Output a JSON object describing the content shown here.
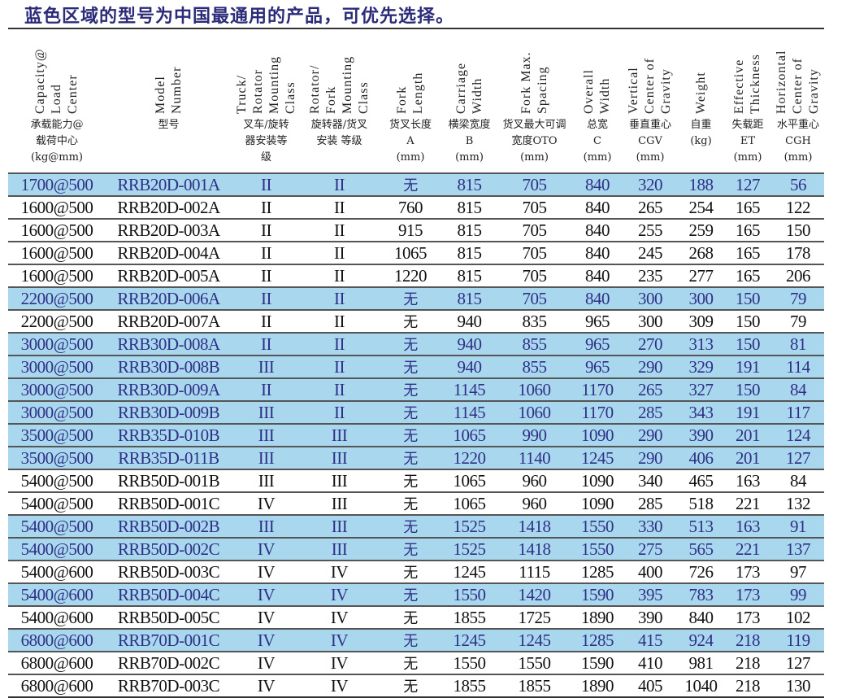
{
  "title": "蓝色区域的型号为中国最通用的产品，可优先选择。",
  "highlight_color": "#a9d8ee",
  "columns": [
    {
      "en": "Capacity@\nLoad\nCenter",
      "zh": "承载能力@\n载荷中心\n(kg@mm)"
    },
    {
      "en": "Model\nNumber",
      "zh": "型号"
    },
    {
      "en": "Truck/\nRotator\nMounting\nClass",
      "zh": "叉车/旋转\n器安装等\n级"
    },
    {
      "en": "Rotator/\nFork\nMounting\nClass",
      "zh": "旋转器/货叉\n安装 等级"
    },
    {
      "en": "Fork\nLength",
      "zh": "货叉长度\nA\n(mm)"
    },
    {
      "en": "Carriage\nWidth",
      "zh": "横梁宽度\nB\n(mm)"
    },
    {
      "en": "Fork Max.\nSpacing",
      "zh": "货叉最大可调\n宽度OTO\n(mm)"
    },
    {
      "en": "Overall\nWidth",
      "zh": "总宽\nC\n(mm)"
    },
    {
      "en": "Vertical\nCenter of\nGravity",
      "zh": "垂直重心\nCGV\n(mm)"
    },
    {
      "en": "Weight",
      "zh": "自重\n(kg)"
    },
    {
      "en": "Effective\nThickness",
      "zh": "失载距\nET\n(mm)"
    },
    {
      "en": "Horizontal\nCenter of\nGravity",
      "zh": "水平重心\nCGH\n(mm)"
    }
  ],
  "rows": [
    {
      "blue": true,
      "cells": [
        "1700@500",
        "RRB20D-001A",
        "II",
        "II",
        "无",
        "815",
        "705",
        "840",
        "320",
        "188",
        "127",
        "56"
      ]
    },
    {
      "blue": false,
      "cells": [
        "1600@500",
        "RRB20D-002A",
        "II",
        "II",
        "760",
        "815",
        "705",
        "840",
        "265",
        "254",
        "165",
        "122"
      ]
    },
    {
      "blue": false,
      "cells": [
        "1600@500",
        "RRB20D-003A",
        "II",
        "II",
        "915",
        "815",
        "705",
        "840",
        "255",
        "259",
        "165",
        "150"
      ]
    },
    {
      "blue": false,
      "cells": [
        "1600@500",
        "RRB20D-004A",
        "II",
        "II",
        "1065",
        "815",
        "705",
        "840",
        "245",
        "268",
        "165",
        "178"
      ]
    },
    {
      "blue": false,
      "cells": [
        "1600@500",
        "RRB20D-005A",
        "II",
        "II",
        "1220",
        "815",
        "705",
        "840",
        "235",
        "277",
        "165",
        "206"
      ]
    },
    {
      "blue": true,
      "cells": [
        "2200@500",
        "RRB20D-006A",
        "II",
        "II",
        "无",
        "815",
        "705",
        "840",
        "300",
        "300",
        "150",
        "79"
      ]
    },
    {
      "blue": false,
      "cells": [
        "2200@500",
        "RRB20D-007A",
        "II",
        "II",
        "无",
        "940",
        "835",
        "965",
        "300",
        "309",
        "150",
        "79"
      ]
    },
    {
      "blue": true,
      "cells": [
        "3000@500",
        "RRB30D-008A",
        "II",
        "II",
        "无",
        "940",
        "855",
        "965",
        "270",
        "313",
        "150",
        "81"
      ]
    },
    {
      "blue": true,
      "cells": [
        "3000@500",
        "RRB30D-008B",
        "III",
        "II",
        "无",
        "940",
        "855",
        "965",
        "290",
        "329",
        "191",
        "114"
      ]
    },
    {
      "blue": true,
      "cells": [
        "3000@500",
        "RRB30D-009A",
        "II",
        "II",
        "无",
        "1145",
        "1060",
        "1170",
        "265",
        "327",
        "150",
        "84"
      ]
    },
    {
      "blue": true,
      "cells": [
        "3000@500",
        "RRB30D-009B",
        "III",
        "II",
        "无",
        "1145",
        "1060",
        "1170",
        "285",
        "343",
        "191",
        "117"
      ]
    },
    {
      "blue": true,
      "cells": [
        "3500@500",
        "RRB35D-010B",
        "III",
        "III",
        "无",
        "1065",
        "990",
        "1090",
        "290",
        "390",
        "201",
        "124"
      ]
    },
    {
      "blue": true,
      "cells": [
        "3500@500",
        "RRB35D-011B",
        "III",
        "III",
        "无",
        "1220",
        "1140",
        "1245",
        "290",
        "406",
        "201",
        "127"
      ]
    },
    {
      "blue": false,
      "cells": [
        "5400@500",
        "RRB50D-001B",
        "III",
        "III",
        "无",
        "1065",
        "960",
        "1090",
        "340",
        "465",
        "163",
        "84"
      ]
    },
    {
      "blue": false,
      "cells": [
        "5400@500",
        "RRB50D-001C",
        "IV",
        "III",
        "无",
        "1065",
        "960",
        "1090",
        "285",
        "518",
        "221",
        "132"
      ]
    },
    {
      "blue": true,
      "cells": [
        "5400@500",
        "RRB50D-002B",
        "III",
        "III",
        "无",
        "1525",
        "1418",
        "1550",
        "330",
        "513",
        "163",
        "91"
      ]
    },
    {
      "blue": true,
      "cells": [
        "5400@500",
        "RRB50D-002C",
        "IV",
        "III",
        "无",
        "1525",
        "1418",
        "1550",
        "275",
        "565",
        "221",
        "137"
      ]
    },
    {
      "blue": false,
      "cells": [
        "5400@600",
        "RRB50D-003C",
        "IV",
        "IV",
        "无",
        "1245",
        "1115",
        "1285",
        "400",
        "726",
        "173",
        "97"
      ]
    },
    {
      "blue": true,
      "cells": [
        "5400@600",
        "RRB50D-004C",
        "IV",
        "IV",
        "无",
        "1550",
        "1420",
        "1590",
        "395",
        "783",
        "173",
        "99"
      ]
    },
    {
      "blue": false,
      "cells": [
        "5400@600",
        "RRB50D-005C",
        "IV",
        "IV",
        "无",
        "1855",
        "1725",
        "1890",
        "390",
        "840",
        "173",
        "102"
      ]
    },
    {
      "blue": true,
      "cells": [
        "6800@600",
        "RRB70D-001C",
        "IV",
        "IV",
        "无",
        "1245",
        "1245",
        "1285",
        "415",
        "924",
        "218",
        "119"
      ]
    },
    {
      "blue": false,
      "cells": [
        "6800@600",
        "RRB70D-002C",
        "IV",
        "IV",
        "无",
        "1550",
        "1550",
        "1590",
        "410",
        "981",
        "218",
        "127"
      ]
    },
    {
      "blue": false,
      "cells": [
        "6800@600",
        "RRB70D-003C",
        "IV",
        "IV",
        "无",
        "1855",
        "1855",
        "1890",
        "405",
        "1040",
        "218",
        "130"
      ]
    }
  ]
}
